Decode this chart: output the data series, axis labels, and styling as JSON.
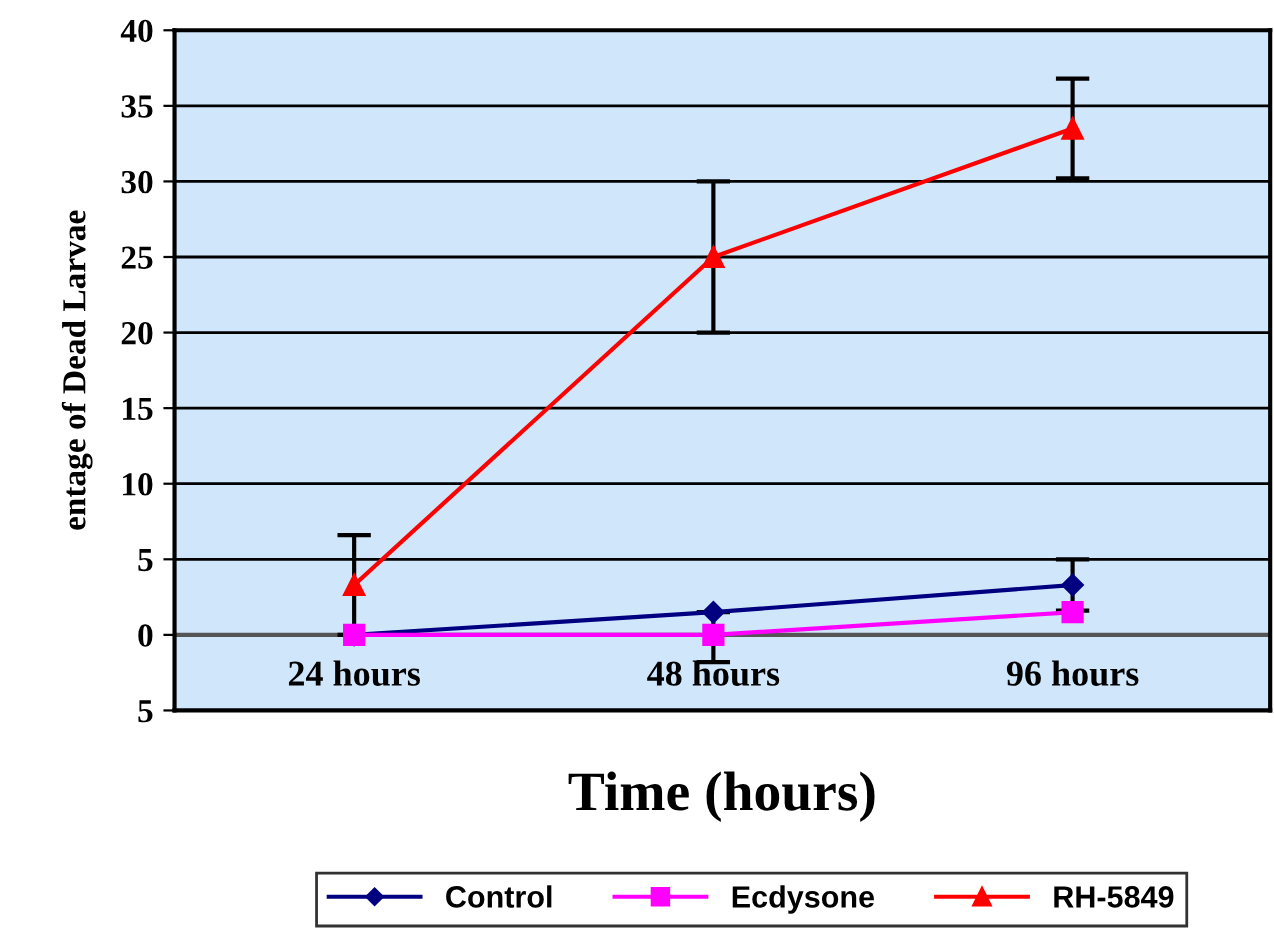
{
  "chart_data": {
    "type": "line",
    "xlabel": "Time (hours)",
    "ylabel": "entage of Dead Larvae",
    "categories": [
      "24 hours",
      "48 hours",
      "96 hours"
    ],
    "series": [
      {
        "name": "Control",
        "color": "#000080",
        "marker": "diamond",
        "values": [
          0,
          1.5,
          3.3
        ],
        "errors": [
          null,
          [
            -1.8,
            1.5
          ],
          1.7
        ]
      },
      {
        "name": "Ecdysone",
        "color": "#ff00ff",
        "marker": "square",
        "values": [
          0,
          0,
          1.5
        ]
      },
      {
        "name": "RH-5849",
        "color": "#ff0000",
        "marker": "triangle",
        "values": [
          3.3,
          25,
          33.5
        ],
        "errors": [
          3.3,
          5,
          3.3
        ]
      }
    ],
    "ylim": [
      -5,
      40
    ],
    "yticks": [
      {
        "value": -5,
        "label": "5"
      },
      0,
      5,
      10,
      15,
      20,
      25,
      30,
      35,
      40
    ],
    "grid": "y",
    "legend": "bottom"
  }
}
